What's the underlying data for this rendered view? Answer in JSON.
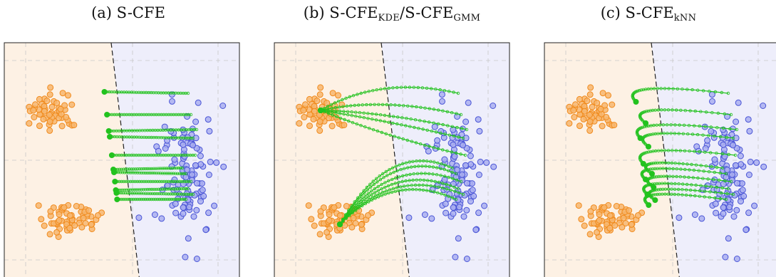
{
  "panels": [
    {
      "title_prefix": "(a) S-CFE",
      "title_sub": "",
      "title_mid": "",
      "title_sub2": ""
    },
    {
      "title_prefix": "(b) S-CFE",
      "title_sub": "KDE",
      "title_mid": "/S-CFE",
      "title_sub2": "GMM"
    },
    {
      "title_prefix": "(c) S-CFE",
      "title_sub": "kNN",
      "title_mid": "",
      "title_sub2": ""
    }
  ],
  "colors": {
    "class_orange_fill": "#f7b66e",
    "class_orange_edge": "#f08a1c",
    "class_blue_fill": "#a9aef0",
    "class_blue_edge": "#4a55d6",
    "region_orange": "#fdf1e4",
    "region_blue": "#eeeefb",
    "path_green": "#22c21e",
    "grid": "#c8c8c8",
    "boundary": "#222222"
  },
  "chart_data": [
    {
      "type": "scatter",
      "panel": "a",
      "grid": true,
      "decision_boundary": "dashed line",
      "counterfactual_paths": "straight horizontal paths from blue points across the boundary"
    },
    {
      "type": "scatter",
      "panel": "b",
      "grid": true,
      "decision_boundary": "dashed line",
      "counterfactual_paths": "curved paths converging onto the two orange clusters"
    },
    {
      "type": "scatter",
      "panel": "c",
      "grid": true,
      "decision_boundary": "dashed line",
      "counterfactual_paths": "curved paths ending near the boundary on the orange side"
    }
  ]
}
